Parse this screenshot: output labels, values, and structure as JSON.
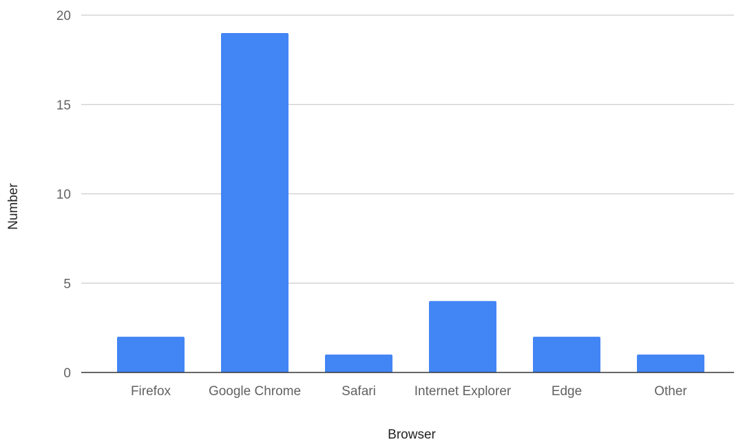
{
  "chart_data": {
    "type": "bar",
    "categories": [
      "Firefox",
      "Google Chrome",
      "Safari",
      "Internet Explorer",
      "Edge",
      "Other"
    ],
    "values": [
      2,
      19,
      1,
      4,
      2,
      1
    ],
    "title": "",
    "xlabel": "Browser",
    "ylabel": "Number",
    "ylim": [
      0,
      20
    ],
    "yticks": [
      0,
      5,
      10,
      15,
      20
    ],
    "grid": true,
    "legend": "none",
    "colors": {
      "bar": "#4285f4",
      "grid": "#cccccc",
      "baseline": "#333333"
    }
  }
}
